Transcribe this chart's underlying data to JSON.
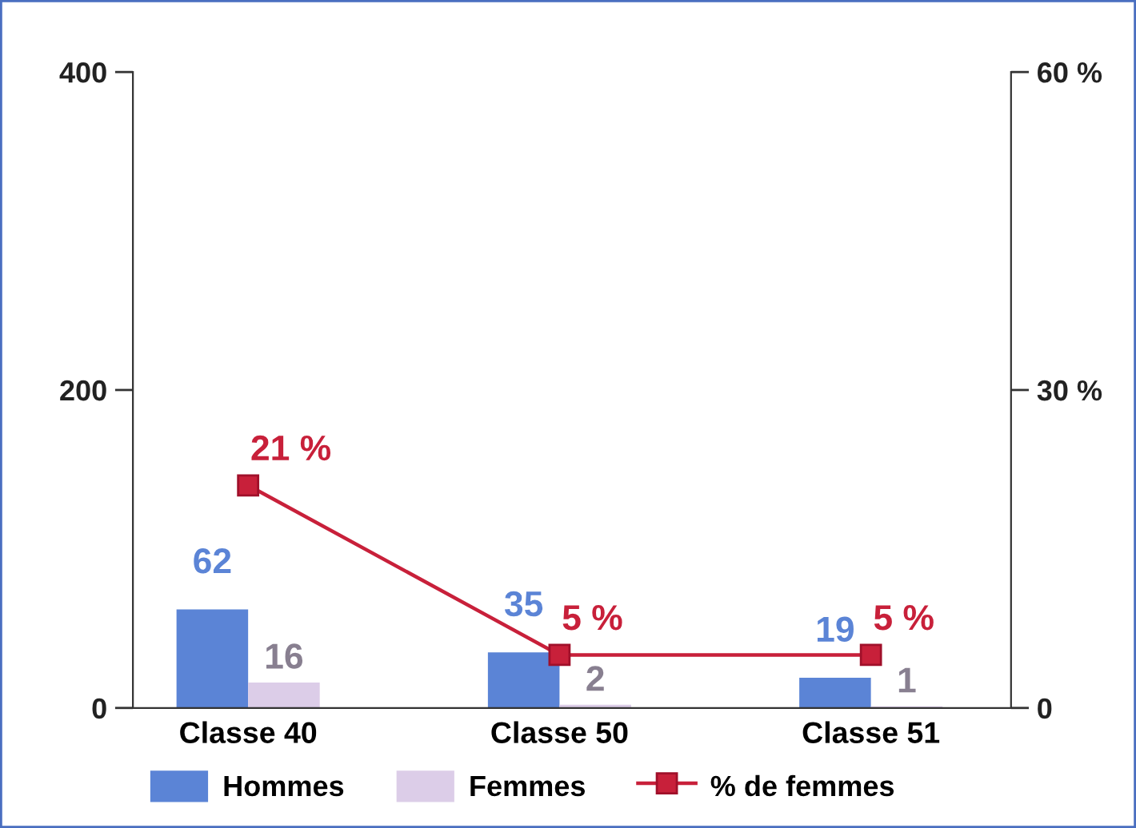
{
  "chart_data": {
    "type": "bar",
    "categories": [
      "Classe 40",
      "Classe 50",
      "Classe 51"
    ],
    "series": [
      {
        "name": "Hommes",
        "color": "#5b84d6",
        "values": [
          62,
          35,
          19
        ],
        "value_labels": [
          "62",
          "35",
          "19"
        ]
      },
      {
        "name": "Femmes",
        "color": "#dccde8",
        "values": [
          16,
          2,
          1
        ],
        "value_labels": [
          "16",
          "2",
          "1"
        ]
      },
      {
        "name": "% de femmes",
        "type": "line",
        "axis": "y2",
        "color": "#c8203a",
        "values": [
          21,
          5,
          5
        ],
        "value_labels": [
          "21 %",
          "5 %",
          "5 %"
        ]
      }
    ],
    "ylim": [
      0,
      400
    ],
    "yticks": [
      0,
      200,
      400
    ],
    "y2lim": [
      0,
      60
    ],
    "y2ticks": [
      0,
      {
        "value": 30,
        "label": "30 %"
      },
      {
        "value": 60,
        "label": "60 %"
      }
    ],
    "grid": false,
    "legend": "bottom",
    "marker": "square",
    "line_style": "solid"
  }
}
